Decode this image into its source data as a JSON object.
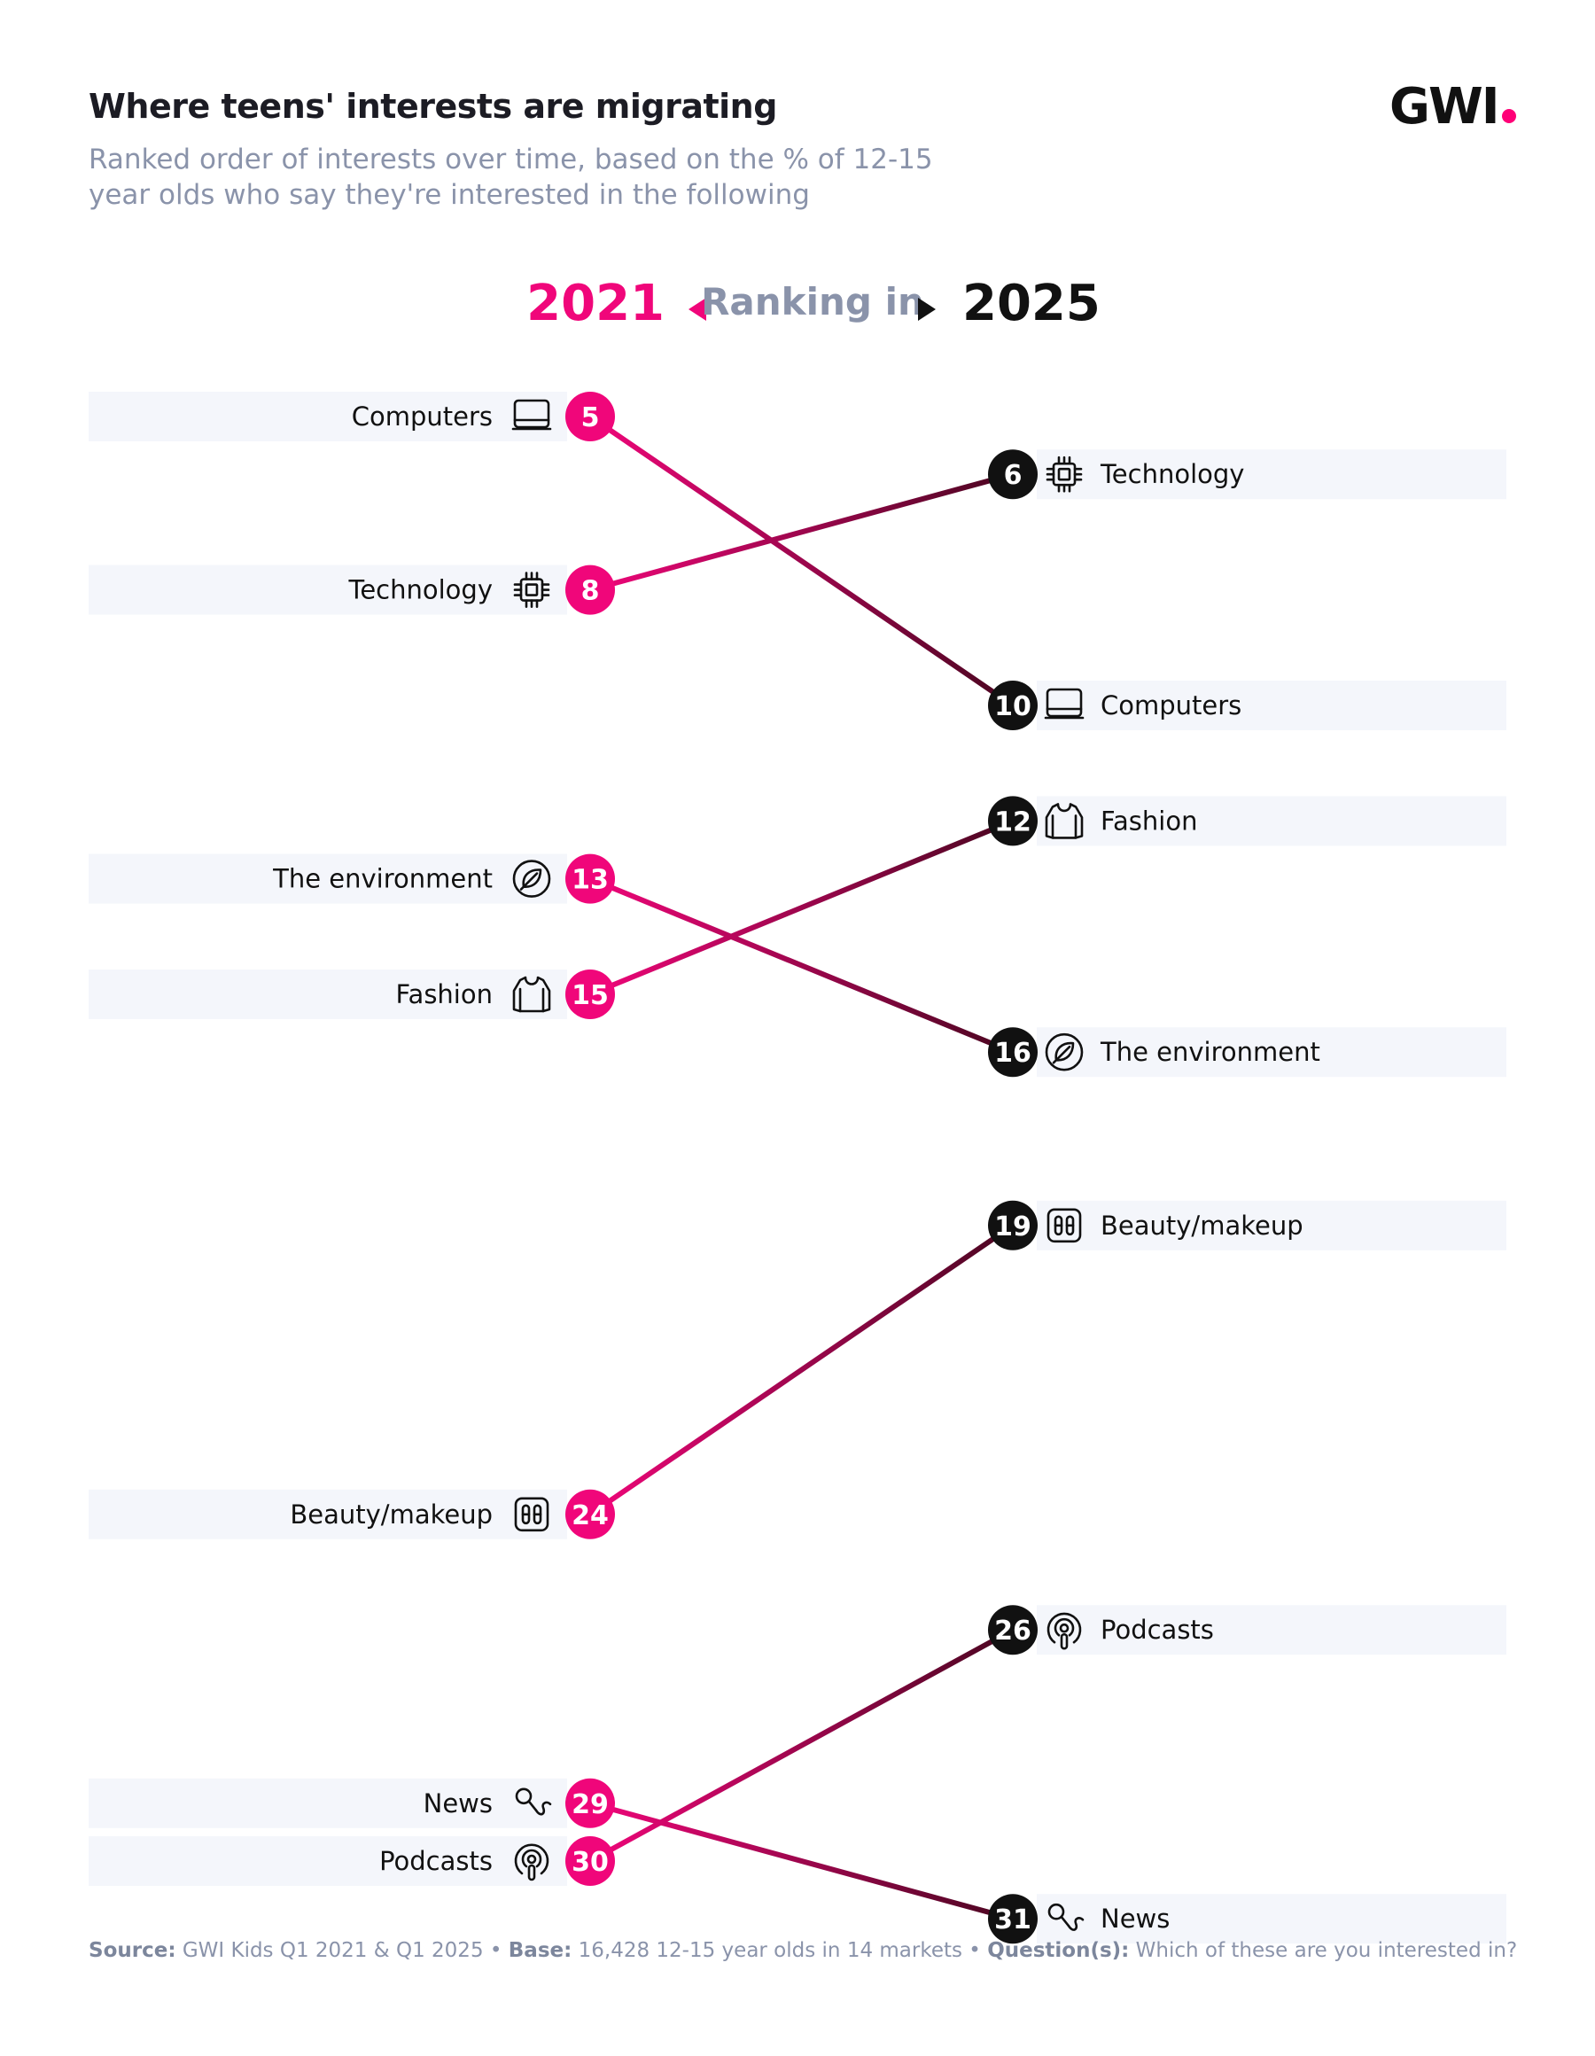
{
  "header": {
    "title": "Where teens' interests are migrating",
    "subtitle_line1": "Ranked order of interests over time, based on the % of 12-15",
    "subtitle_line2": "year olds who say they're interested in the following",
    "logo": "GWI"
  },
  "ranking_header": {
    "year_left": "2021",
    "label": "Ranking in",
    "year_right": "2025"
  },
  "colors": {
    "accent_2021": "#f0067a",
    "line_2025": "#111111",
    "band": "#f4f6fb",
    "muted_text": "#8a93aa"
  },
  "chart_data": {
    "type": "slope",
    "x": [
      "2021",
      "2025"
    ],
    "series": [
      {
        "name": "Computers",
        "icon": "laptop-icon",
        "values": [
          5,
          10
        ]
      },
      {
        "name": "Technology",
        "icon": "chip-icon",
        "values": [
          8,
          6
        ]
      },
      {
        "name": "The environment",
        "icon": "leaf-icon",
        "values": [
          13,
          16
        ]
      },
      {
        "name": "Fashion",
        "icon": "hoodie-icon",
        "values": [
          15,
          12
        ]
      },
      {
        "name": "Beauty/makeup",
        "icon": "makeup-palette-icon",
        "values": [
          24,
          19
        ]
      },
      {
        "name": "News",
        "icon": "microphone-icon",
        "values": [
          29,
          31
        ]
      },
      {
        "name": "Podcasts",
        "icon": "podcast-icon",
        "values": [
          30,
          26
        ]
      }
    ]
  },
  "footer": {
    "source_label": "Source:",
    "source_text": " GWI Kids Q1 2021 & Q1 2025 • ",
    "base_label": "Base:",
    "base_text": " 16,428 12-15 year olds in 14 markets • ",
    "question_label": "Question(s):",
    "question_text": " Which of these are you interested in?"
  }
}
